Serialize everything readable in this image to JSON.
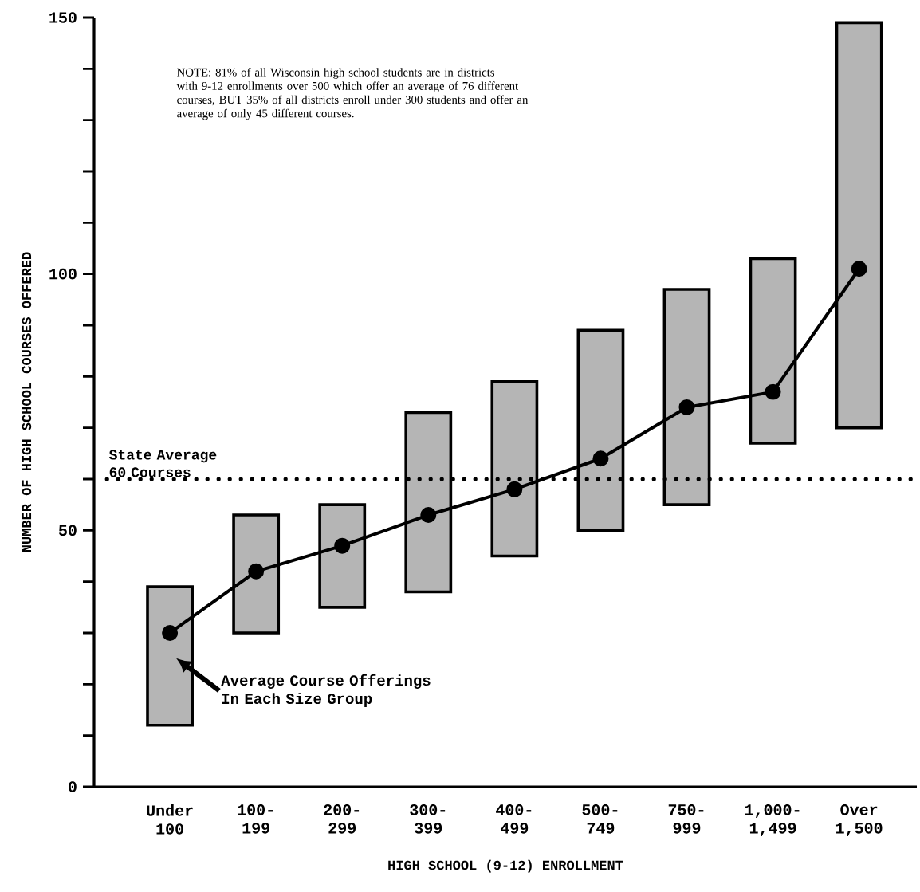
{
  "chart_data": {
    "type": "bar",
    "xlabel": "HIGH SCHOOL (9-12) ENROLLMENT",
    "ylabel": "NUMBER OF HIGH SCHOOL COURSES OFFERED",
    "categories": [
      "Under 100",
      "100-199",
      "200-299",
      "300-399",
      "400-499",
      "500-749",
      "750-999",
      "1,000-1,499",
      "Over 1,500"
    ],
    "series": [
      {
        "color": "#b5b5b5",
        "base": [
          12,
          30,
          35,
          38,
          45,
          50,
          55,
          67,
          70
        ],
        "values": [
          27,
          23,
          20,
          35,
          34,
          39,
          42,
          36,
          79
        ]
      },
      {
        "type": "line",
        "color": "#000000",
        "marker": "circle",
        "values": [
          30,
          42,
          47,
          53,
          58,
          64,
          74,
          77,
          101
        ]
      }
    ],
    "ylim": [
      0,
      150
    ],
    "yticks": [
      0,
      {
        "value": 10,
        "label": null
      },
      {
        "value": 20,
        "label": null
      },
      {
        "value": 30,
        "label": null
      },
      {
        "value": 40,
        "label": null
      },
      50,
      {
        "value": 60,
        "label": null
      },
      {
        "value": 70,
        "label": null
      },
      {
        "value": 80,
        "label": null
      },
      {
        "value": 90,
        "label": null
      },
      100,
      {
        "value": 110,
        "label": null
      },
      {
        "value": 120,
        "label": null
      },
      {
        "value": 130,
        "label": null
      },
      {
        "value": 140,
        "label": null
      },
      150
    ],
    "ref_lines": [
      {
        "axis": "y",
        "value": 60,
        "label": "State Average 60 Courses",
        "line_style": "dotted"
      }
    ],
    "annotations": [
      "NOTE: 81% of all Wisconsin high school students are in districts with 9-12 enrollments over 500 which offer an average of 76 different courses, BUT 35% of all districts enroll under 300 students and offer an average of only 45 different courses.",
      "Average Course Offerings In Each Size Group"
    ]
  }
}
